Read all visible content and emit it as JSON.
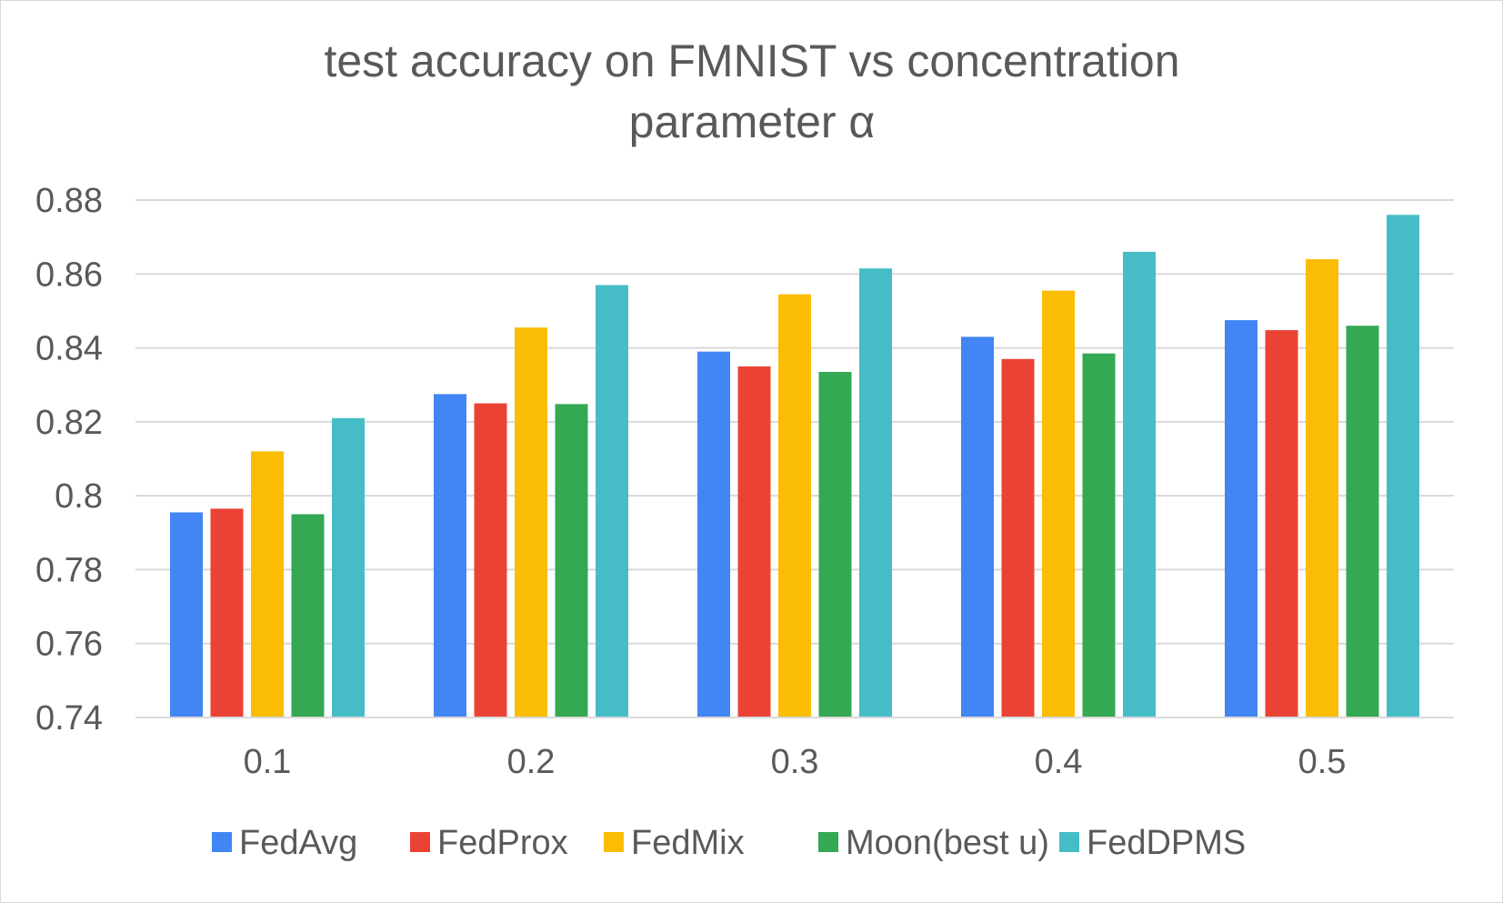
{
  "chart_data": {
    "type": "bar",
    "title": [
      "test accuracy on FMNIST vs concentration",
      "parameter α"
    ],
    "xlabel": "",
    "ylabel": "",
    "categories": [
      "0.1",
      "0.2",
      "0.3",
      "0.4",
      "0.5"
    ],
    "yticks": [
      "0.74",
      "0.76",
      "0.78",
      "0.8",
      "0.82",
      "0.84",
      "0.86",
      "0.88"
    ],
    "ylim": [
      0.74,
      0.88
    ],
    "grid": true,
    "legend_position": "bottom",
    "series": [
      {
        "name": "FedAvg",
        "color": "#4285F4",
        "values": [
          0.7955,
          0.8275,
          0.839,
          0.843,
          0.8475
        ]
      },
      {
        "name": "FedProx",
        "color": "#EA4335",
        "values": [
          0.7965,
          0.825,
          0.835,
          0.837,
          0.8448
        ]
      },
      {
        "name": "FedMix",
        "color": "#FBBC04",
        "values": [
          0.812,
          0.8455,
          0.8545,
          0.8555,
          0.864
        ]
      },
      {
        "name": "Moon(best u)",
        "color": "#34A853",
        "values": [
          0.795,
          0.8248,
          0.8335,
          0.8385,
          0.846
        ]
      },
      {
        "name": "FedDPMS",
        "color": "#46BDC6",
        "values": [
          0.821,
          0.857,
          0.8615,
          0.866,
          0.876
        ]
      }
    ]
  }
}
